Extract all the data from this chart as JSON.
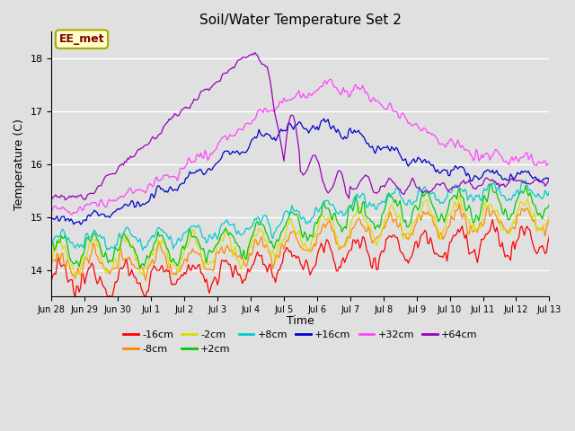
{
  "title": "Soil/Water Temperature Set 2",
  "xlabel": "Time",
  "ylabel": "Temperature (C)",
  "ylim": [
    13.5,
    18.5
  ],
  "background_color": "#e0e0e0",
  "annotation_text": "EE_met",
  "annotation_bg": "#ffffcc",
  "annotation_border": "#aaaa00",
  "series": [
    {
      "label": "-16cm",
      "color": "#ff0000"
    },
    {
      "label": "-8cm",
      "color": "#ff8800"
    },
    {
      "label": "-2cm",
      "color": "#dddd00"
    },
    {
      "label": "+2cm",
      "color": "#00cc00"
    },
    {
      "label": "+8cm",
      "color": "#00cccc"
    },
    {
      "label": "+16cm",
      "color": "#0000cc"
    },
    {
      "label": "+32cm",
      "color": "#ff44ff"
    },
    {
      "label": "+64cm",
      "color": "#9900bb"
    }
  ],
  "tick_labels": [
    "Jun 28",
    "Jun 29",
    "Jun 30",
    "Jul 1",
    "Jul 2",
    "Jul 3",
    "Jul 4",
    "Jul 5",
    "Jul 6",
    "Jul 7",
    "Jul 8",
    "Jul 9",
    "Jul 10",
    "Jul 11",
    "Jul 12",
    "Jul 13"
  ],
  "tick_positions": [
    0,
    24,
    48,
    72,
    96,
    120,
    144,
    168,
    192,
    216,
    240,
    264,
    288,
    312,
    336,
    360
  ]
}
